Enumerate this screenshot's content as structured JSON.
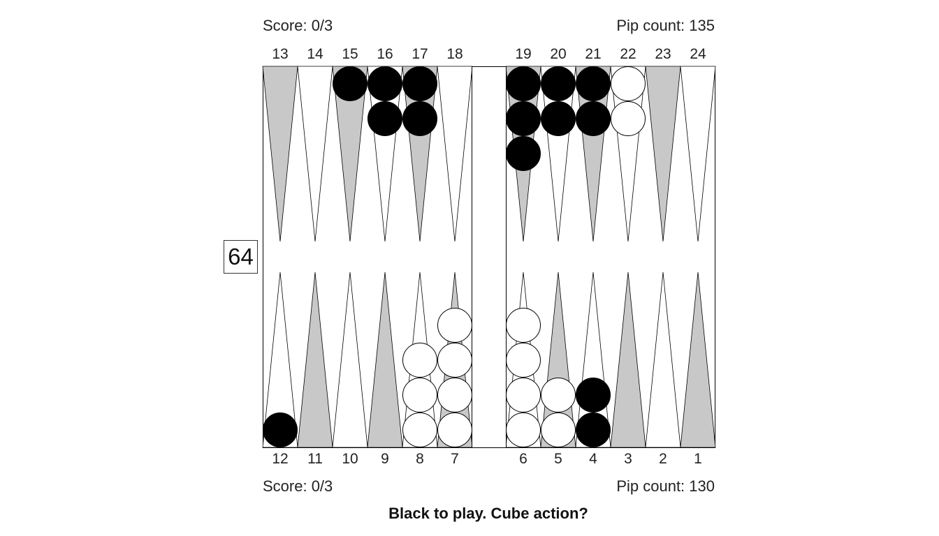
{
  "top": {
    "score": "Score: 0/3",
    "pip_count": "Pip count: 135"
  },
  "bottom": {
    "score": "Score: 0/3",
    "pip_count": "Pip count: 130"
  },
  "cube_value": "64",
  "question": "Black to play. Cube action?",
  "top_point_numbers": [
    "13",
    "14",
    "15",
    "16",
    "17",
    "18",
    "19",
    "20",
    "21",
    "22",
    "23",
    "24"
  ],
  "bottom_point_numbers": [
    "12",
    "11",
    "10",
    "9",
    "8",
    "7",
    "6",
    "5",
    "4",
    "3",
    "2",
    "1"
  ],
  "colors": {
    "dark_point": "#c8c8c8",
    "light_point": "#ffffff",
    "black_checker": "#000000",
    "white_checker": "#ffffff",
    "outline": "#000000"
  },
  "checkers": [
    {
      "point": 12,
      "color": "black",
      "count": 1
    },
    {
      "point": 15,
      "color": "black",
      "count": 1
    },
    {
      "point": 16,
      "color": "black",
      "count": 2
    },
    {
      "point": 17,
      "color": "black",
      "count": 2
    },
    {
      "point": 19,
      "color": "black",
      "count": 3
    },
    {
      "point": 20,
      "color": "black",
      "count": 2
    },
    {
      "point": 21,
      "color": "black",
      "count": 2
    },
    {
      "point": 22,
      "color": "white",
      "count": 2
    },
    {
      "point": 8,
      "color": "white",
      "count": 3
    },
    {
      "point": 7,
      "color": "white",
      "count": 4
    },
    {
      "point": 6,
      "color": "white",
      "count": 4
    },
    {
      "point": 5,
      "color": "white",
      "count": 2
    },
    {
      "point": 4,
      "color": "black",
      "count": 2
    }
  ]
}
